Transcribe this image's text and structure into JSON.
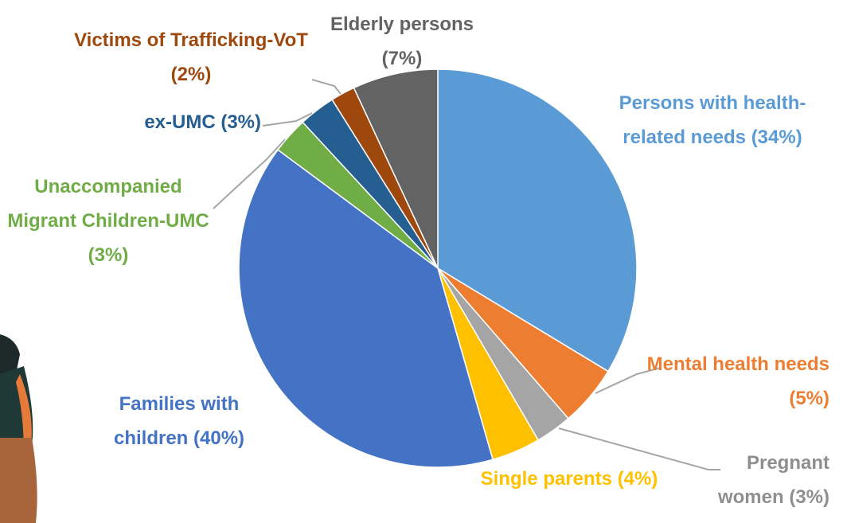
{
  "chart_data": {
    "type": "pie",
    "categories": [
      "Persons with health-related needs",
      "Mental health needs",
      "Pregnant women",
      "Single parents",
      "Families with children",
      "Unaccompanied Migrant Children-UMC",
      "ex-UMC",
      "Victims of Trafficking-VoT",
      "Elderly persons"
    ],
    "values": [
      34,
      5,
      3,
      4,
      40,
      3,
      3,
      2,
      7
    ],
    "value_labels": [
      "(34%)",
      "(5%)",
      "(3%)",
      "(4%)",
      "(40%)",
      "(3%)",
      "(3%)",
      "(2%)",
      "(7%)"
    ],
    "colors": [
      "#5b9bd5",
      "#ed7d31",
      "#a5a5a5",
      "#ffc000",
      "#4472c4",
      "#70ad47",
      "#255e91",
      "#9e480e",
      "#636363"
    ]
  }
}
